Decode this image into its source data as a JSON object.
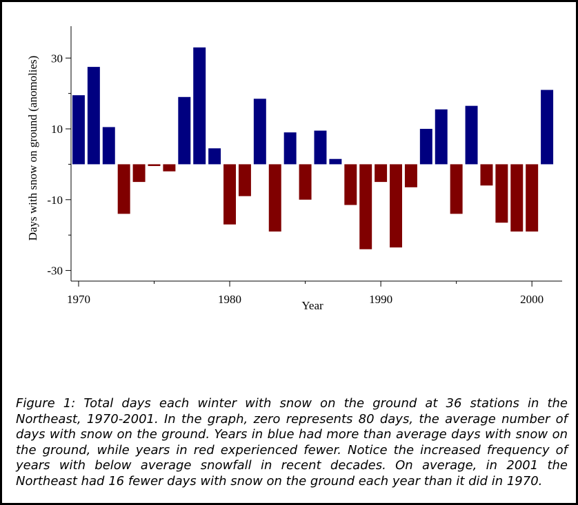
{
  "chart_data": {
    "type": "bar",
    "x": [
      1970,
      1971,
      1972,
      1973,
      1974,
      1975,
      1976,
      1977,
      1978,
      1979,
      1980,
      1981,
      1982,
      1983,
      1984,
      1985,
      1986,
      1987,
      1988,
      1989,
      1990,
      1991,
      1992,
      1993,
      1994,
      1995,
      1996,
      1997,
      1998,
      1999,
      2000,
      2001
    ],
    "values": [
      19.5,
      27.5,
      10.5,
      -14,
      -5,
      -0.5,
      -2,
      19,
      33,
      4.5,
      -17,
      -9,
      18.5,
      -19,
      9,
      -10,
      9.5,
      1.5,
      -11.5,
      -24,
      -5,
      -23.5,
      -6.5,
      10,
      15.5,
      -14,
      16.5,
      -6,
      -16.5,
      -19,
      -19,
      21
    ],
    "positive_color": "#000080",
    "negative_color": "#800000",
    "xlabel": "Year",
    "ylabel": "Days with snow on ground (anomolies)",
    "xlim": [
      1969.5,
      2002
    ],
    "ylim": [
      -33,
      39
    ],
    "x_ticks": [
      "1970",
      "1980",
      "1990",
      "2000"
    ],
    "x_tick_values": [
      1970,
      1980,
      1990,
      2000
    ],
    "x_minor_ticks": [
      1975,
      1985,
      1995
    ],
    "y_ticks": [
      "30",
      "10",
      "-10",
      "-30"
    ],
    "y_tick_values": [
      30,
      10,
      -10,
      -30
    ],
    "y_minor_ticks": [
      20,
      0,
      -20
    ],
    "grid": false
  },
  "caption": "Figure 1: Total days each winter with snow on the ground at 36 stations in the Northeast, 1970-2001. In the graph, zero represents 80 days, the average number of days with snow on the ground. Years in blue had more than average days with snow on the ground, while years in red experienced fewer. Notice the increased frequency of years with below average snowfall in recent decades. On average, in 2001 the Northeast had 16 fewer days with snow on the ground each year than it did in 1970."
}
